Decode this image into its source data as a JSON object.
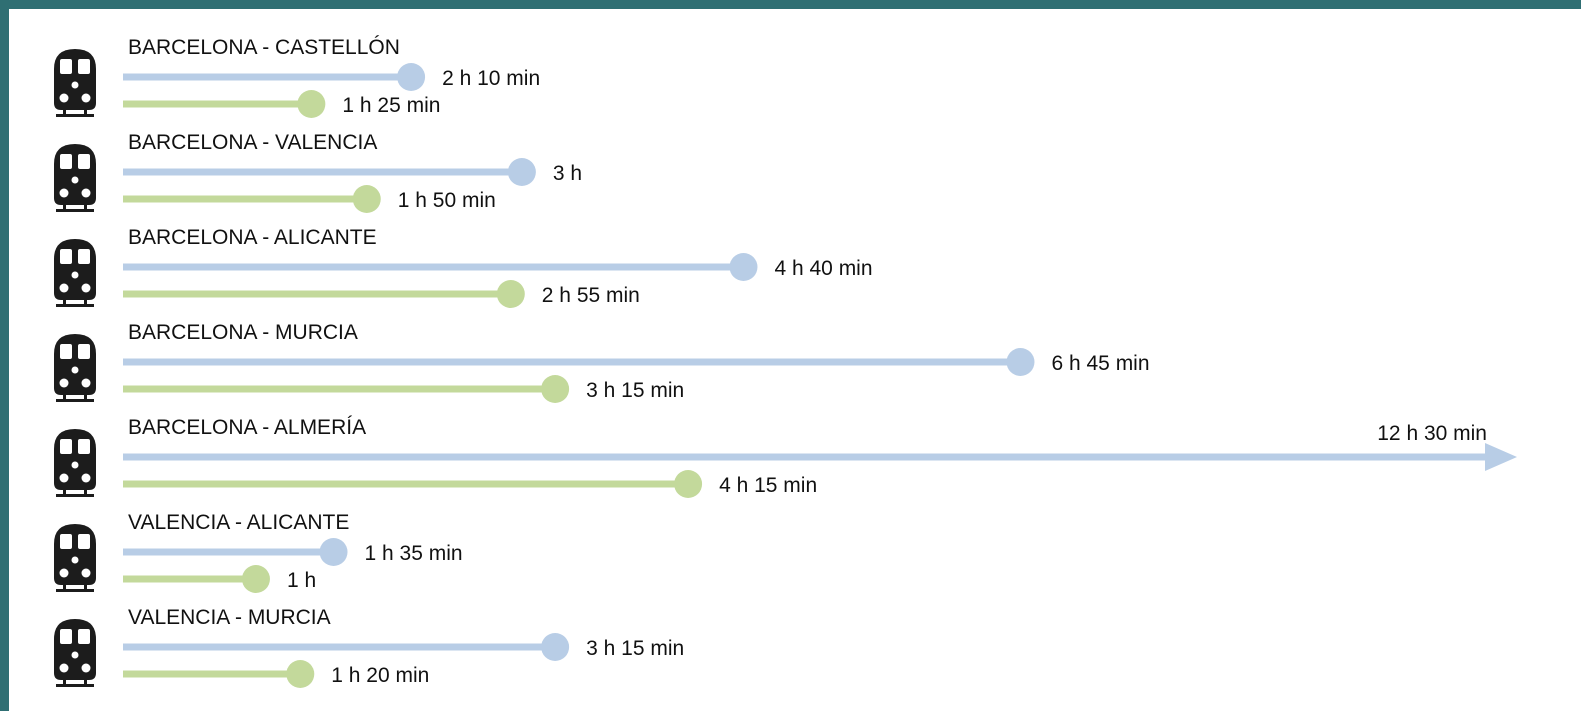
{
  "colors": {
    "frame": "#2f6f73",
    "series_a": "#b8cde6",
    "series_b": "#c3d99b",
    "icon": "#1c1c1c"
  },
  "icons": {
    "route": "train-icon"
  },
  "chart_data": {
    "type": "bar",
    "orientation": "horizontal",
    "categories": [
      "BARCELONA - CASTELLÓN",
      "BARCELONA - VALENCIA",
      "BARCELONA - ALICANTE",
      "BARCELONA - MURCIA",
      "BARCELONA - ALMERÍA",
      "VALENCIA - ALICANTE",
      "VALENCIA - MURCIA"
    ],
    "unit": "minutes",
    "series": [
      {
        "color": "#b8cde6",
        "values": [
          130,
          180,
          280,
          405,
          750,
          95,
          195
        ],
        "labels": [
          "2 h 10 min",
          "3 h",
          "4 h 40 min",
          "6 h 45 min",
          "12 h 30 min",
          "1 h 35 min",
          "3 h 15 min"
        ]
      },
      {
        "color": "#c3d99b",
        "values": [
          85,
          110,
          175,
          195,
          255,
          60,
          80
        ],
        "labels": [
          "1 h 25 min",
          "1 h 50 min",
          "2 h 55 min",
          "3 h 15 min",
          "4 h 15 min",
          "1 h",
          "1 h 20 min"
        ]
      }
    ],
    "overflow_marker": {
      "series_index": 0,
      "category_index": 4,
      "style": "arrow"
    },
    "title": "",
    "xlabel": "",
    "ylabel": "",
    "grid": false,
    "legend": "none"
  }
}
